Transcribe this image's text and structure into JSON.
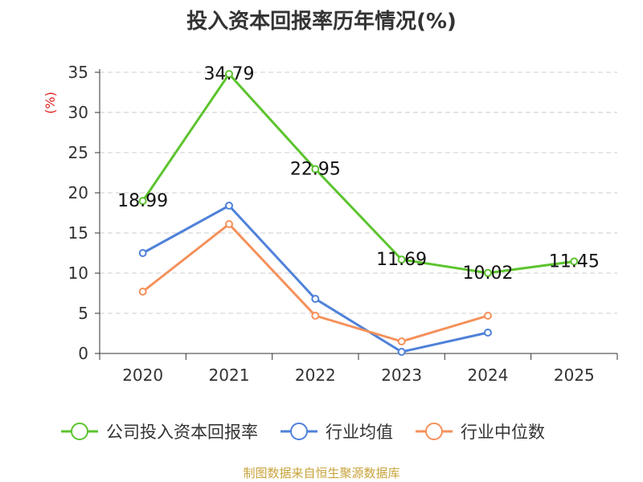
{
  "chart_data": {
    "type": "line",
    "title": "投入资本回报率历年情况(%)",
    "ylabel": "(%)",
    "xlabel": "",
    "categories": [
      "2020",
      "2021",
      "2022",
      "2023",
      "2024",
      "2025"
    ],
    "ylim": [
      0,
      35
    ],
    "yticks": [
      0,
      5,
      10,
      15,
      20,
      25,
      30,
      35
    ],
    "grid": true,
    "legend_position": "bottom",
    "series": [
      {
        "name": "公司投入资本回报率",
        "color": "#5cc42e",
        "values": [
          18.99,
          34.79,
          22.95,
          11.69,
          10.02,
          11.45
        ],
        "labels": [
          "18.99",
          "34.79",
          "22.95",
          "11.69",
          "10.02",
          "11.45"
        ]
      },
      {
        "name": "行业均值",
        "color": "#4f81d9",
        "values": [
          12.5,
          18.4,
          6.8,
          0.2,
          2.6,
          null
        ]
      },
      {
        "name": "行业中位数",
        "color": "#f5905a",
        "values": [
          7.7,
          16.1,
          4.7,
          1.5,
          4.7,
          null
        ]
      }
    ]
  },
  "source": "制图数据来自恒生聚源数据库"
}
